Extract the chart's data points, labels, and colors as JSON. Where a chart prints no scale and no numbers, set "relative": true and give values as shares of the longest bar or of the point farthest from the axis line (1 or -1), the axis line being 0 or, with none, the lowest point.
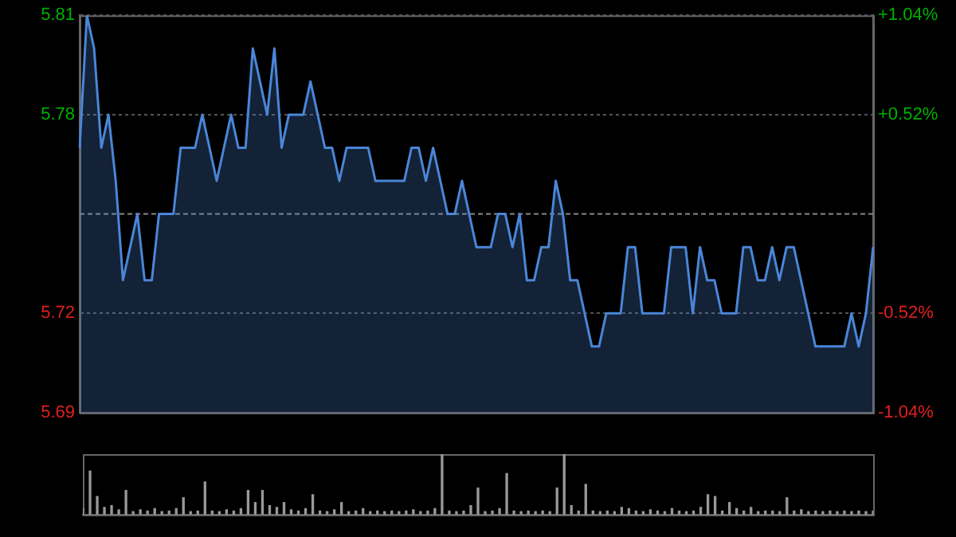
{
  "chart_data": [
    {
      "type": "area",
      "categories": [
        null,
        null,
        null,
        null,
        null,
        null,
        null,
        null,
        null,
        null,
        null,
        null,
        null,
        null,
        null,
        null,
        null,
        null,
        null,
        null,
        null,
        null,
        null,
        null,
        null,
        null,
        null,
        null,
        null,
        null,
        null,
        null,
        null,
        null,
        null,
        null,
        null,
        null,
        null,
        null,
        null,
        null,
        null,
        null,
        null,
        null,
        null,
        null,
        null,
        null,
        null,
        null,
        null,
        null,
        null,
        null,
        null,
        null,
        null,
        null,
        null,
        null,
        null,
        null,
        null,
        null,
        null,
        null,
        null,
        null,
        null,
        null,
        null,
        null,
        null,
        null,
        null,
        null,
        null,
        null,
        null,
        null,
        null,
        null,
        null,
        null,
        null,
        null,
        null,
        null,
        null,
        null,
        null,
        null,
        null,
        null,
        null,
        null,
        null,
        null,
        null,
        null,
        null,
        null,
        null,
        null,
        null,
        null,
        null,
        null,
        null
      ],
      "values": [
        5.77,
        5.81,
        5.8,
        5.77,
        5.78,
        5.76,
        5.73,
        5.74,
        5.75,
        5.73,
        5.73,
        5.75,
        5.75,
        5.75,
        5.77,
        5.77,
        5.77,
        5.78,
        5.77,
        5.76,
        5.77,
        5.78,
        5.77,
        5.77,
        5.8,
        5.79,
        5.78,
        5.8,
        5.77,
        5.78,
        5.78,
        5.78,
        5.79,
        5.78,
        5.77,
        5.77,
        5.76,
        5.77,
        5.77,
        5.77,
        5.77,
        5.76,
        5.76,
        5.76,
        5.76,
        5.76,
        5.77,
        5.77,
        5.76,
        5.77,
        5.76,
        5.75,
        5.75,
        5.76,
        5.75,
        5.74,
        5.74,
        5.74,
        5.75,
        5.75,
        5.74,
        5.75,
        5.73,
        5.73,
        5.74,
        5.74,
        5.76,
        5.75,
        5.73,
        5.73,
        5.72,
        5.71,
        5.71,
        5.72,
        5.72,
        5.72,
        5.74,
        5.74,
        5.72,
        5.72,
        5.72,
        5.72,
        5.74,
        5.74,
        5.74,
        5.72,
        5.74,
        5.73,
        5.73,
        5.72,
        5.72,
        5.72,
        5.74,
        5.74,
        5.73,
        5.73,
        5.74,
        5.73,
        5.74,
        5.74,
        5.73,
        5.72,
        5.71,
        5.71,
        5.71,
        5.71,
        5.71,
        5.72,
        5.71,
        5.72,
        5.74
      ],
      "color": "#4a86d8",
      "ylim": [
        5.69,
        5.81
      ],
      "yticks": [
        5.81,
        5.78,
        5.72,
        5.69
      ],
      "y2lim": [
        -1.04,
        1.04
      ],
      "y2ticks": [
        {
          "value": 1.04,
          "label": "+1.04%"
        },
        {
          "value": 0.52,
          "label": "+0.52%"
        },
        {
          "value": -0.52,
          "label": "-0.52%"
        },
        {
          "value": -1.04,
          "label": "-1.04%"
        }
      ],
      "ref_lines": [
        {
          "axis": "y",
          "value": 5.75
        }
      ],
      "grid": "y"
    },
    {
      "type": "bar",
      "relative": true,
      "categories": [
        null,
        null,
        null,
        null,
        null,
        null,
        null,
        null,
        null,
        null,
        null,
        null,
        null,
        null,
        null,
        null,
        null,
        null,
        null,
        null,
        null,
        null,
        null,
        null,
        null,
        null,
        null,
        null,
        null,
        null,
        null,
        null,
        null,
        null,
        null,
        null,
        null,
        null,
        null,
        null,
        null,
        null,
        null,
        null,
        null,
        null,
        null,
        null,
        null,
        null,
        null,
        null,
        null,
        null,
        null,
        null,
        null,
        null,
        null,
        null,
        null,
        null,
        null,
        null,
        null,
        null,
        null,
        null,
        null,
        null,
        null,
        null,
        null,
        null,
        null,
        null,
        null,
        null,
        null,
        null,
        null,
        null,
        null,
        null,
        null,
        null,
        null,
        null,
        null,
        null,
        null,
        null,
        null,
        null,
        null,
        null,
        null,
        null,
        null,
        null,
        null,
        null,
        null,
        null,
        null,
        null,
        null,
        null,
        null,
        null,
        null
      ],
      "values": [
        0.1,
        0.72,
        0.3,
        0.12,
        0.15,
        0.08,
        0.4,
        0.05,
        0.08,
        0.06,
        0.1,
        0.05,
        0.06,
        0.1,
        0.28,
        0.05,
        0.06,
        0.54,
        0.06,
        0.05,
        0.08,
        0.06,
        0.1,
        0.4,
        0.2,
        0.4,
        0.15,
        0.12,
        0.2,
        0.08,
        0.06,
        0.1,
        0.33,
        0.06,
        0.05,
        0.08,
        0.2,
        0.05,
        0.06,
        0.1,
        0.05,
        0.06,
        0.05,
        0.06,
        0.05,
        0.06,
        0.08,
        0.05,
        0.06,
        0.1,
        1,
        0.06,
        0.05,
        0.06,
        0.15,
        0.44,
        0.05,
        0.06,
        0.1,
        0.68,
        0.06,
        0.05,
        0.06,
        0.05,
        0.06,
        0.05,
        0.44,
        1,
        0.15,
        0.06,
        0.5,
        0.06,
        0.05,
        0.06,
        0.05,
        0.12,
        0.1,
        0.06,
        0.05,
        0.08,
        0.06,
        0.05,
        0.1,
        0.06,
        0.05,
        0.06,
        0.12,
        0.33,
        0.3,
        0.06,
        0.2,
        0.1,
        0.06,
        0.12,
        0.05,
        0.06,
        0.06,
        0.05,
        0.28,
        0.06,
        0.08,
        0.05,
        0.06,
        0.05,
        0.06,
        0.05,
        0.06,
        0.05,
        0.06,
        0.05,
        0.06
      ],
      "color": "#999999"
    }
  ]
}
